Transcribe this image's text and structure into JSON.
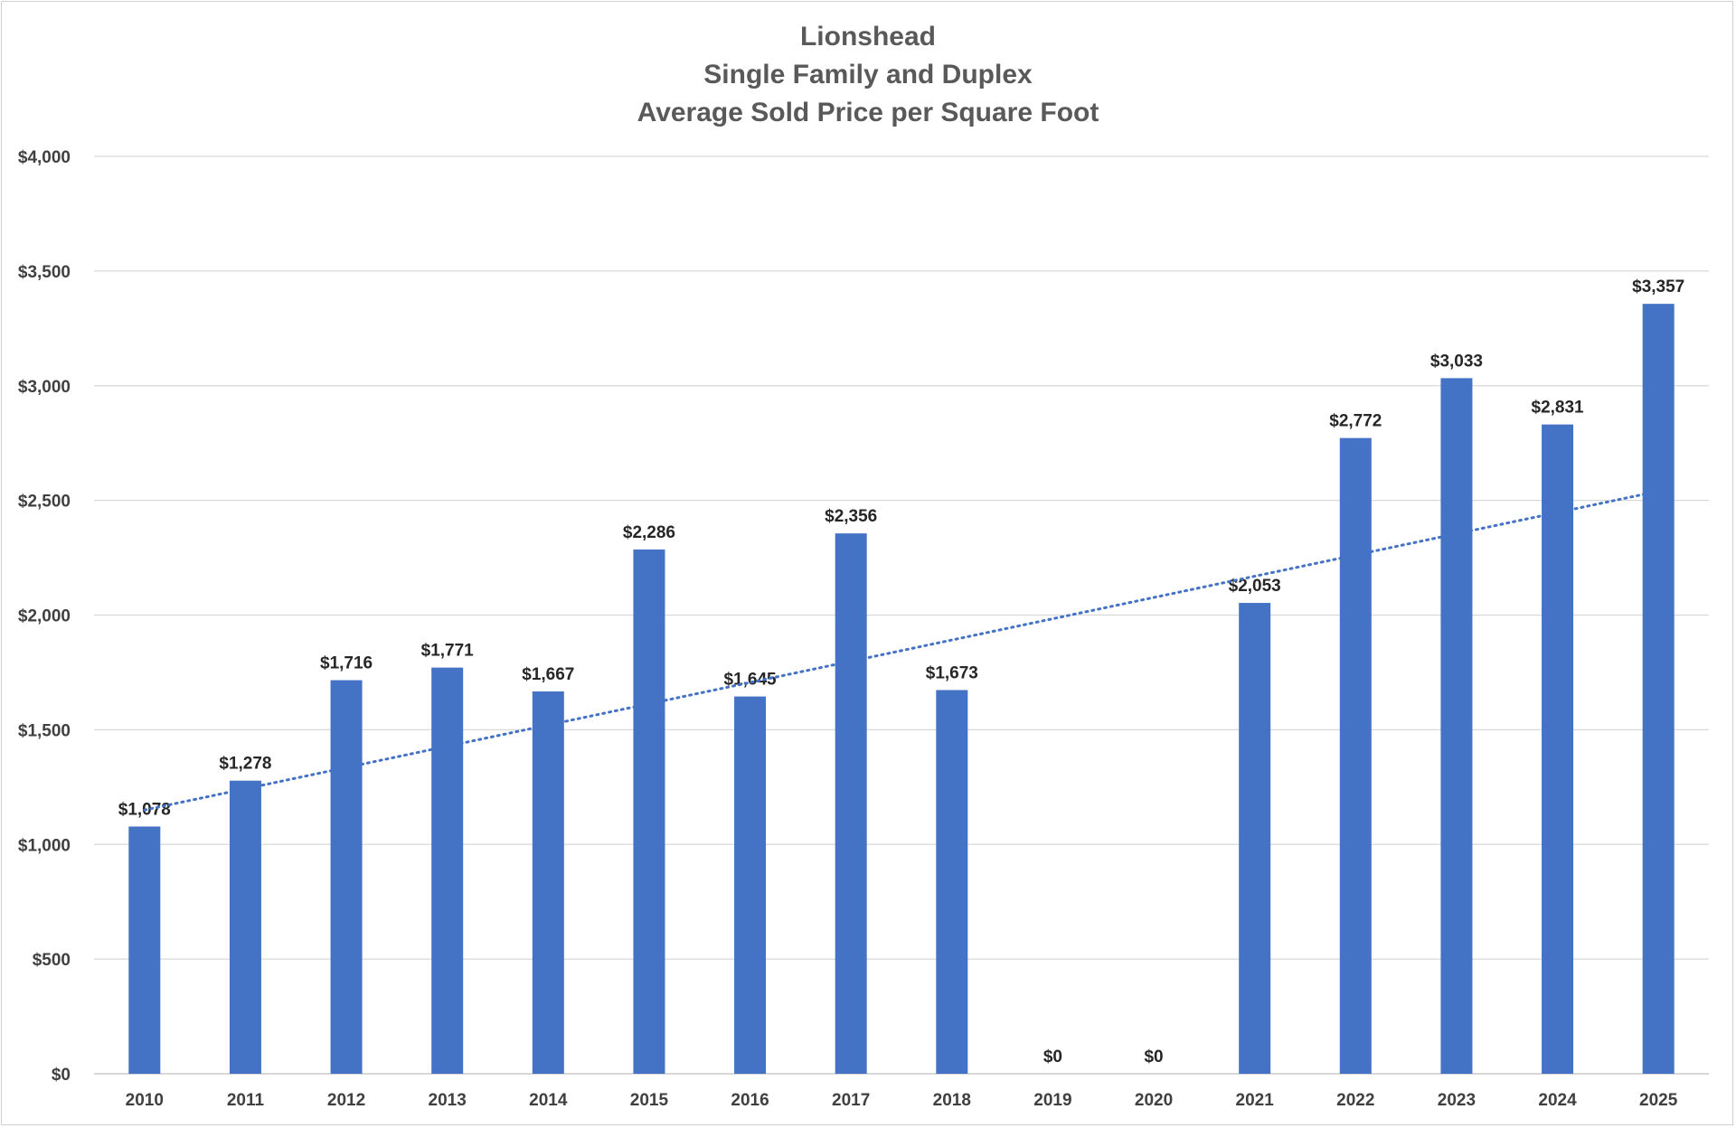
{
  "chart_data": {
    "type": "bar",
    "title_lines": [
      "Lionshead",
      "Single Family and Duplex",
      "Average Sold Price per Square Foot"
    ],
    "categories": [
      "2010",
      "2011",
      "2012",
      "2013",
      "2014",
      "2015",
      "2016",
      "2017",
      "2018",
      "2019",
      "2020",
      "2021",
      "2022",
      "2023",
      "2024",
      "2025"
    ],
    "values": [
      1078,
      1278,
      1716,
      1771,
      1667,
      2286,
      1645,
      2356,
      1673,
      0,
      0,
      2053,
      2772,
      3033,
      2831,
      3357
    ],
    "value_labels": [
      "$1,078",
      "$1,278",
      "$1,716",
      "$1,771",
      "$1,667",
      "$2,286",
      "$1,645",
      "$2,356",
      "$1,673",
      "$0",
      "$0",
      "$2,053",
      "$2,772",
      "$3,033",
      "$2,831",
      "$3,357"
    ],
    "y_ticks": [
      0,
      500,
      1000,
      1500,
      2000,
      2500,
      3000,
      3500,
      4000
    ],
    "y_tick_labels": [
      "$0",
      "$500",
      "$1,000",
      "$1,500",
      "$2,000",
      "$2,500",
      "$3,000",
      "$3,500",
      "$4,000"
    ],
    "ylim": [
      0,
      4000
    ],
    "trendline": {
      "type": "linear",
      "style": "dotted",
      "start_value": 1150,
      "end_value": 2540
    },
    "grid": true,
    "legend": false,
    "bar_color": "#4472C4",
    "trend_color": "#4472C4",
    "xlabel": "",
    "ylabel": ""
  }
}
